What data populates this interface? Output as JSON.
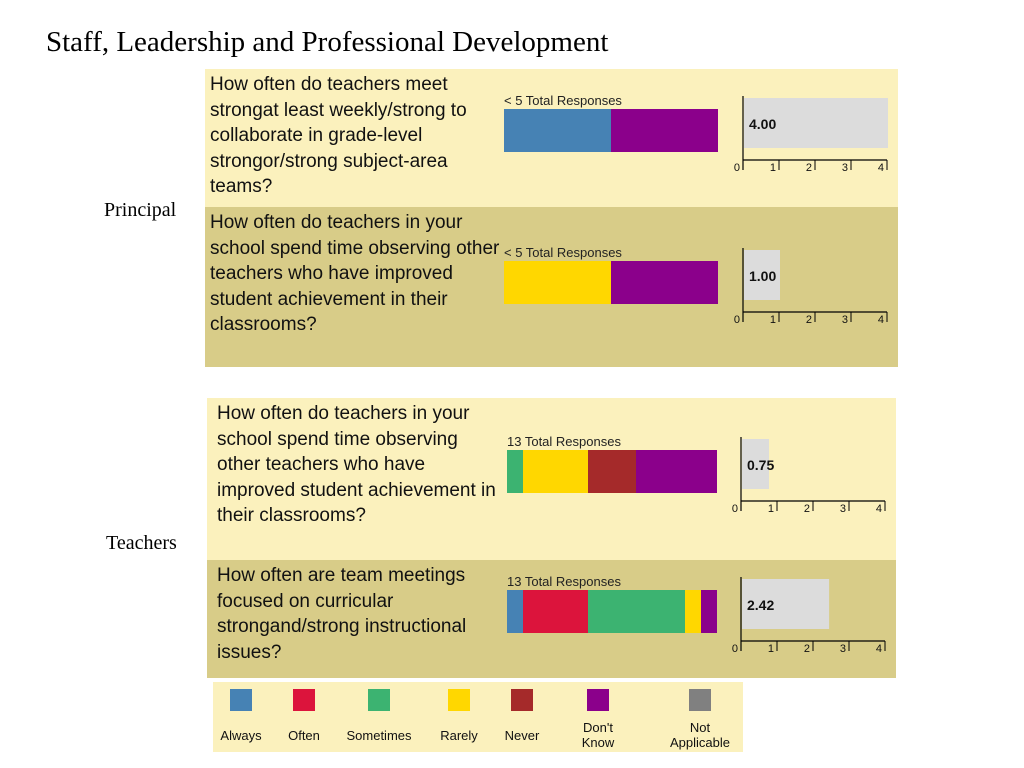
{
  "page": {
    "title": "Staff, Leadership and Professional Development"
  },
  "colors": {
    "always": "#4682b4",
    "often": "#dc143c",
    "sometimes": "#3cb371",
    "rarely": "#ffd700",
    "never": "#a52a2a",
    "dont_know": "#8b008b",
    "not_applicable": "#808080",
    "mini_bar": "#dcdcdc"
  },
  "groups": [
    {
      "label": "Principal",
      "questions": [
        {
          "text": "How often do teachers meet strongat least weekly/strong to collaborate in grade-level strongor/strong subject-area teams?",
          "responses_label": "< 5 Total Responses",
          "segments": [
            {
              "category": "always",
              "share": 0.5
            },
            {
              "category": "dont_know",
              "share": 0.5
            }
          ],
          "mean": 4.0,
          "mean_label": "4.00"
        },
        {
          "text": "How often do teachers in your school spend time observing other teachers who have improved student achievement in their classrooms?",
          "responses_label": "< 5 Total Responses",
          "segments": [
            {
              "category": "rarely",
              "share": 0.5
            },
            {
              "category": "dont_know",
              "share": 0.5
            }
          ],
          "mean": 1.0,
          "mean_label": "1.00"
        }
      ]
    },
    {
      "label": "Teachers",
      "questions": [
        {
          "text": "How often do teachers in your school spend time observing other teachers who have improved student achievement in their classrooms?",
          "responses_label": "13 Total Responses",
          "segments": [
            {
              "category": "sometimes",
              "share": 0.077
            },
            {
              "category": "rarely",
              "share": 0.308
            },
            {
              "category": "never",
              "share": 0.231
            },
            {
              "category": "dont_know",
              "share": 0.384
            }
          ],
          "mean": 0.75,
          "mean_label": "0.75"
        },
        {
          "text": "How often are team meetings focused on curricular strongand/strong instructional issues?",
          "responses_label": "13 Total Responses",
          "segments": [
            {
              "category": "always",
              "share": 0.077
            },
            {
              "category": "often",
              "share": 0.308
            },
            {
              "category": "sometimes",
              "share": 0.461
            },
            {
              "category": "rarely",
              "share": 0.077
            },
            {
              "category": "dont_know",
              "share": 0.077
            }
          ],
          "mean": 2.42,
          "mean_label": "2.42"
        }
      ]
    }
  ],
  "legend": [
    {
      "key": "always",
      "label": "Always"
    },
    {
      "key": "often",
      "label": "Often"
    },
    {
      "key": "sometimes",
      "label": "Sometimes"
    },
    {
      "key": "rarely",
      "label": "Rarely"
    },
    {
      "key": "never",
      "label": "Never"
    },
    {
      "key": "dont_know",
      "label": "Don't\nKnow"
    },
    {
      "key": "not_applicable",
      "label": "Not\nApplicable"
    }
  ],
  "chart_data": [
    {
      "type": "bar",
      "orientation": "horizontal",
      "stacked": true,
      "title": "Staff, Leadership and Professional Development",
      "categories": [
        "Principal: How often do teachers meet strongat least weekly/strong to collaborate in grade-level strongor/strong subject-area teams?",
        "Principal: How often do teachers in your school spend time observing other teachers who have improved student achievement in their classrooms?",
        "Teachers: How often do teachers in your school spend time observing other teachers who have improved student achievement in their classrooms?",
        "Teachers: How often are team meetings focused on curricular strongand/strong instructional issues?"
      ],
      "series": [
        {
          "name": "Always",
          "values": [
            0.5,
            0,
            0,
            0.077
          ]
        },
        {
          "name": "Often",
          "values": [
            0,
            0,
            0,
            0.308
          ]
        },
        {
          "name": "Sometimes",
          "values": [
            0,
            0,
            0.077,
            0.461
          ]
        },
        {
          "name": "Rarely",
          "values": [
            0,
            0.5,
            0.308,
            0.077
          ]
        },
        {
          "name": "Never",
          "values": [
            0,
            0,
            0.231,
            0
          ]
        },
        {
          "name": "Don't Know",
          "values": [
            0.5,
            0.5,
            0.384,
            0.077
          ]
        },
        {
          "name": "Not Applicable",
          "values": [
            0,
            0,
            0,
            0
          ]
        }
      ],
      "legend": "bottom"
    },
    {
      "type": "bar",
      "orientation": "horizontal",
      "categories": [
        "Principal: How often do teachers meet strongat least weekly/strong to collaborate in grade-level strongor/strong subject-area teams?",
        "Principal: How often do teachers in your school spend time observing other teachers who have improved student achievement in their classrooms?",
        "Teachers: How often do teachers in your school spend time observing other teachers who have improved student achievement in their classrooms?",
        "Teachers: How often are team meetings focused on curricular strongand/strong instructional issues?"
      ],
      "values": [
        4.0,
        1.0,
        0.75,
        2.42
      ],
      "data_labels": [
        "4.00",
        "1.00",
        "0.75",
        "2.42"
      ],
      "xlim": [
        0,
        4
      ],
      "xticks": [
        0,
        1,
        2,
        3,
        4
      ]
    }
  ]
}
